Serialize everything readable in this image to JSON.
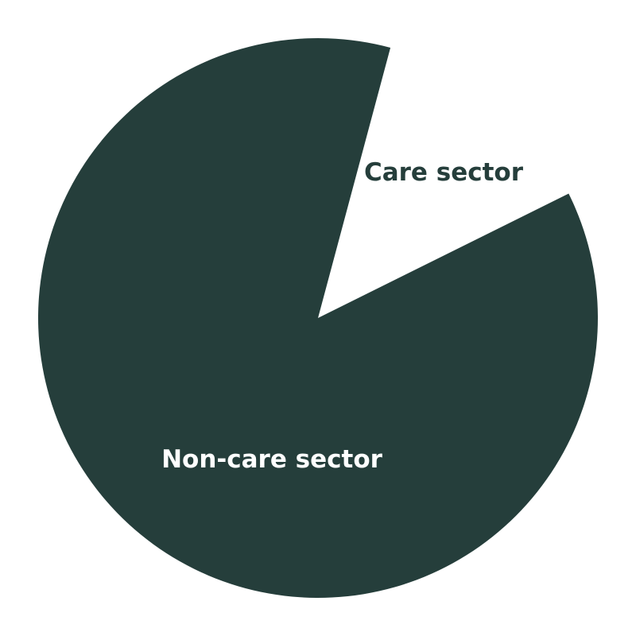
{
  "chart_data": {
    "type": "pie",
    "title": "",
    "slices": [
      {
        "label": "Care sector",
        "value": 13.5,
        "color": "#ffffff",
        "label_color": "#253e3b"
      },
      {
        "label": "Non-care sector",
        "value": 86.5,
        "color": "#253e3b",
        "label_color": "#ffffff"
      }
    ],
    "legend": "none"
  }
}
